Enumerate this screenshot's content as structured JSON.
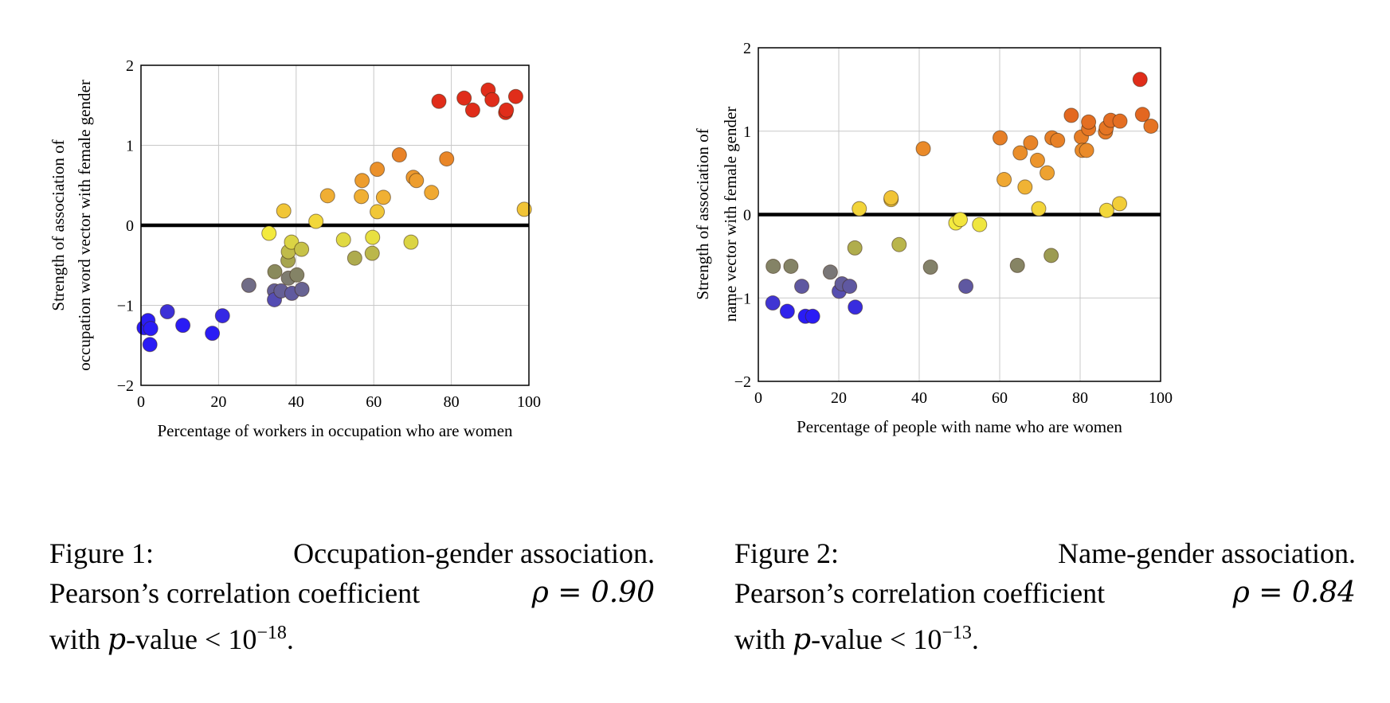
{
  "charts": [
    {
      "type": "scatter",
      "xlabel": "Percentage of workers in occupation who are women",
      "ylabel_lines": [
        "Strength of association of",
        "occupation word vector with female gender"
      ],
      "xlim": [
        0,
        100
      ],
      "ylim": [
        -2,
        2
      ],
      "xticks": [
        "0",
        "20",
        "40",
        "60",
        "80",
        "100"
      ],
      "yticks": [
        "−2",
        "−1",
        "0",
        "1",
        "2"
      ],
      "grid": true,
      "zero_line": true,
      "points": [
        [
          0.8,
          -1.28
        ],
        [
          1.8,
          -1.19
        ],
        [
          2.5,
          -1.29
        ],
        [
          2.3,
          -1.49
        ],
        [
          6.8,
          -1.08
        ],
        [
          10.8,
          -1.25
        ],
        [
          18.4,
          -1.35
        ],
        [
          21.0,
          -1.13
        ],
        [
          27.8,
          -0.75
        ],
        [
          34.4,
          -0.82
        ],
        [
          34.4,
          -0.93
        ],
        [
          34.5,
          -0.58
        ],
        [
          36.1,
          -0.82
        ],
        [
          38.0,
          -0.66
        ],
        [
          38.9,
          -0.85
        ],
        [
          40.2,
          -0.62
        ],
        [
          41.5,
          -0.8
        ],
        [
          33.0,
          -0.1
        ],
        [
          37.9,
          -0.44
        ],
        [
          38.0,
          -0.33
        ],
        [
          38.8,
          -0.21
        ],
        [
          41.4,
          -0.3
        ],
        [
          52.2,
          -0.18
        ],
        [
          55.1,
          -0.41
        ],
        [
          59.7,
          -0.15
        ],
        [
          59.6,
          -0.35
        ],
        [
          69.6,
          -0.21
        ],
        [
          36.8,
          0.18
        ],
        [
          45.1,
          0.05
        ],
        [
          48.1,
          0.37
        ],
        [
          57.0,
          0.56
        ],
        [
          56.8,
          0.36
        ],
        [
          60.9,
          0.7
        ],
        [
          60.9,
          0.17
        ],
        [
          62.5,
          0.35
        ],
        [
          66.6,
          0.88
        ],
        [
          70.2,
          0.6
        ],
        [
          71.0,
          0.56
        ],
        [
          74.9,
          0.41
        ],
        [
          78.8,
          0.83
        ],
        [
          98.8,
          0.2
        ],
        [
          76.8,
          1.55
        ],
        [
          83.3,
          1.59
        ],
        [
          85.5,
          1.44
        ],
        [
          89.5,
          1.69
        ],
        [
          90.5,
          1.57
        ],
        [
          94.0,
          1.41
        ],
        [
          94.2,
          1.44
        ],
        [
          96.6,
          1.61
        ]
      ]
    },
    {
      "type": "scatter",
      "xlabel": "Percentage of people with name who are women",
      "ylabel_lines": [
        "Strength of association of",
        "name vector with female gender"
      ],
      "xlim": [
        0,
        100
      ],
      "ylim": [
        -2,
        2
      ],
      "xticks": [
        "0",
        "20",
        "40",
        "60",
        "80",
        "100"
      ],
      "yticks": [
        "−2",
        "−1",
        "0",
        "1",
        "2"
      ],
      "grid": true,
      "zero_line": true,
      "points": [
        [
          3.6,
          -1.06
        ],
        [
          7.2,
          -1.16
        ],
        [
          11.7,
          -1.22
        ],
        [
          13.5,
          -1.22
        ],
        [
          20.1,
          -0.92
        ],
        [
          24.1,
          -1.11
        ],
        [
          3.7,
          -0.62
        ],
        [
          8.1,
          -0.62
        ],
        [
          10.8,
          -0.86
        ],
        [
          17.9,
          -0.69
        ],
        [
          20.8,
          -0.83
        ],
        [
          22.7,
          -0.86
        ],
        [
          42.8,
          -0.63
        ],
        [
          51.6,
          -0.86
        ],
        [
          64.4,
          -0.61
        ],
        [
          72.8,
          -0.49
        ],
        [
          24.0,
          -0.4
        ],
        [
          25.1,
          0.07
        ],
        [
          33.0,
          0.18
        ],
        [
          33.0,
          0.2
        ],
        [
          35.0,
          -0.36
        ],
        [
          49.1,
          -0.1
        ],
        [
          50.2,
          -0.06
        ],
        [
          55.0,
          -0.12
        ],
        [
          69.7,
          0.07
        ],
        [
          86.6,
          0.05
        ],
        [
          89.8,
          0.13
        ],
        [
          41.0,
          0.79
        ],
        [
          60.1,
          0.92
        ],
        [
          61.1,
          0.42
        ],
        [
          65.1,
          0.74
        ],
        [
          66.3,
          0.33
        ],
        [
          67.7,
          0.86
        ],
        [
          69.4,
          0.65
        ],
        [
          71.8,
          0.5
        ],
        [
          73.0,
          0.92
        ],
        [
          74.4,
          0.89
        ],
        [
          77.8,
          1.19
        ],
        [
          80.3,
          0.93
        ],
        [
          80.5,
          0.77
        ],
        [
          81.6,
          0.77
        ],
        [
          82.1,
          1.03
        ],
        [
          82.1,
          1.11
        ],
        [
          86.3,
          0.99
        ],
        [
          86.5,
          1.04
        ],
        [
          87.6,
          1.13
        ],
        [
          89.9,
          1.12
        ],
        [
          95.5,
          1.2
        ],
        [
          97.6,
          1.06
        ],
        [
          94.9,
          1.62
        ]
      ]
    }
  ],
  "captions": [
    {
      "label": "Figure 1:",
      "title": "Occupation-gender association.",
      "line2_text": "Pearson’s correlation coefficient",
      "line2_math": "ρ = 0.90",
      "line3_prefix": "with",
      "line3_var": "p",
      "line3_text": "-value <",
      "line3_base": "10",
      "line3_exp": "−18",
      "line3_end": "."
    },
    {
      "label": "Figure 2:",
      "title": "Name-gender association.",
      "line2_text": "Pearson’s correlation coefficient",
      "line2_math": "ρ = 0.84",
      "line3_prefix": "with",
      "line3_var": "p",
      "line3_text": "-value <",
      "line3_base": "10",
      "line3_exp": "−13",
      "line3_end": "."
    }
  ],
  "colors": {
    "grid": "#c8c8c8",
    "zero_line": "#000000",
    "low": "#2a1cf5",
    "neutral": "#8f8f55",
    "mid": "#f3ea3e",
    "high": "#e02d1a"
  }
}
